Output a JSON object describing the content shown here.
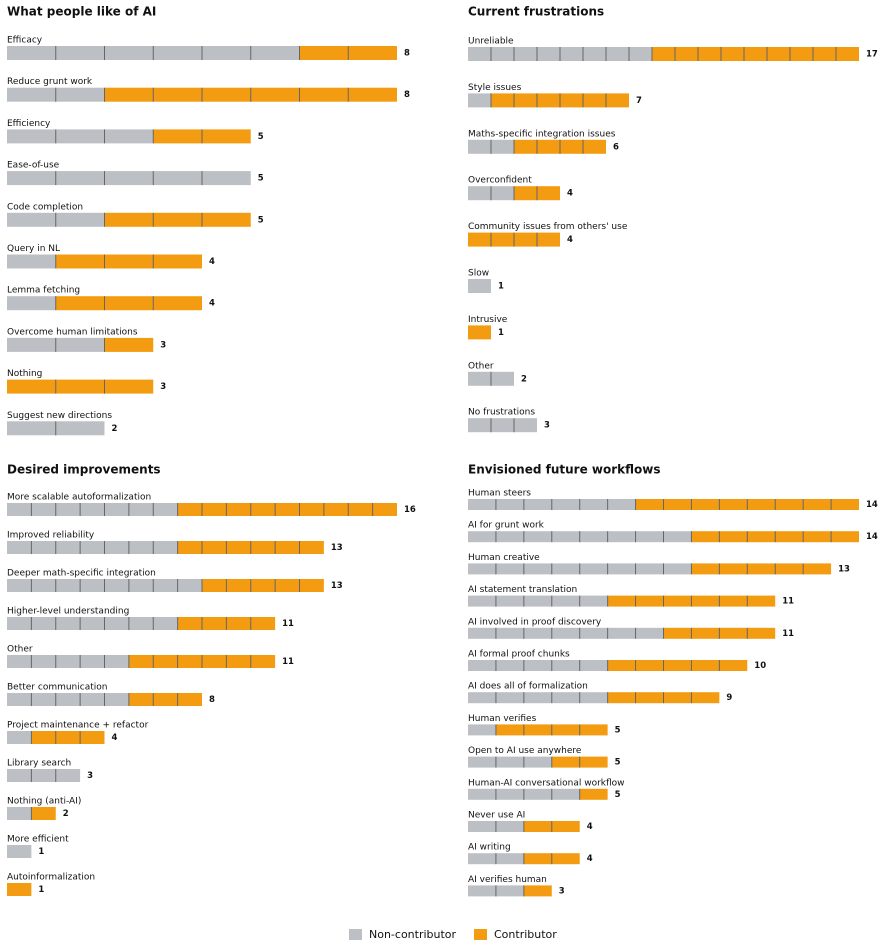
{
  "chart_data": [
    {
      "type": "bar",
      "orientation": "horizontal",
      "stacked": true,
      "title": "What people like of AI",
      "categories": [
        "Efficacy",
        "Reduce grunt work",
        "Efficiency",
        "Ease-of-use",
        "Code completion",
        "Query in NL",
        "Lemma fetching",
        "Overcome human limitations",
        "Nothing",
        "Suggest new directions"
      ],
      "series": [
        {
          "name": "Non-contributor",
          "color": "#bcc0c4",
          "values": [
            6,
            2,
            3,
            5,
            2,
            1,
            1,
            2,
            0,
            2
          ]
        },
        {
          "name": "Contributor",
          "color": "#f39c12",
          "values": [
            2,
            6,
            2,
            0,
            3,
            3,
            3,
            1,
            3,
            0
          ]
        }
      ],
      "totals": [
        8,
        8,
        5,
        5,
        5,
        4,
        4,
        3,
        3,
        2
      ],
      "xlim": [
        0,
        8
      ]
    },
    {
      "type": "bar",
      "orientation": "horizontal",
      "stacked": true,
      "title": "Current frustrations",
      "categories": [
        "Unreliable",
        "Style issues",
        "Maths-specific integration issues",
        "Overconfident",
        "Community issues from others' use",
        "Slow",
        "Intrusive",
        "Other",
        "No frustrations"
      ],
      "series": [
        {
          "name": "Non-contributor",
          "color": "#bcc0c4",
          "values": [
            8,
            1,
            2,
            2,
            0,
            1,
            0,
            2,
            3
          ]
        },
        {
          "name": "Contributor",
          "color": "#f39c12",
          "values": [
            9,
            6,
            4,
            2,
            4,
            0,
            1,
            0,
            0
          ]
        }
      ],
      "totals": [
        17,
        7,
        6,
        4,
        4,
        1,
        1,
        2,
        3
      ],
      "xlim": [
        0,
        17
      ]
    },
    {
      "type": "bar",
      "orientation": "horizontal",
      "stacked": true,
      "title": "Desired improvements",
      "categories": [
        "More scalable autoformalization",
        "Improved reliability",
        "Deeper math-specific integration",
        "Higher-level understanding",
        "Other",
        "Better communication",
        "Project maintenance + refactor",
        "Library search",
        "Nothing (anti-AI)",
        "More efficient",
        "Autoinformalization"
      ],
      "series": [
        {
          "name": "Non-contributor",
          "color": "#bcc0c4",
          "values": [
            7,
            7,
            8,
            7,
            5,
            5,
            1,
            3,
            1,
            1,
            0
          ]
        },
        {
          "name": "Contributor",
          "color": "#f39c12",
          "values": [
            9,
            6,
            5,
            4,
            6,
            3,
            3,
            0,
            1,
            0,
            1
          ]
        }
      ],
      "totals": [
        16,
        13,
        13,
        11,
        11,
        8,
        4,
        3,
        2,
        1,
        1
      ],
      "xlim": [
        0,
        16
      ]
    },
    {
      "type": "bar",
      "orientation": "horizontal",
      "stacked": true,
      "title": "Envisioned future workflows",
      "categories": [
        "Human steers",
        "AI for grunt work",
        "Human creative",
        "AI statement translation",
        "AI involved in proof discovery",
        "AI formal proof chunks",
        "AI does all of formalization",
        "Human verifies",
        "Open to AI use anywhere",
        "Human-AI conversational workflow",
        "Never use AI",
        "AI writing",
        "AI verifies human"
      ],
      "series": [
        {
          "name": "Non-contributor",
          "color": "#bcc0c4",
          "values": [
            6,
            8,
            8,
            5,
            7,
            5,
            5,
            1,
            3,
            4,
            2,
            2,
            2
          ]
        },
        {
          "name": "Contributor",
          "color": "#f39c12",
          "values": [
            8,
            6,
            5,
            6,
            4,
            5,
            4,
            4,
            2,
            1,
            2,
            2,
            1
          ]
        }
      ],
      "totals": [
        14,
        14,
        13,
        11,
        11,
        10,
        9,
        5,
        5,
        5,
        4,
        4,
        3
      ],
      "xlim": [
        0,
        14
      ]
    }
  ]
}
